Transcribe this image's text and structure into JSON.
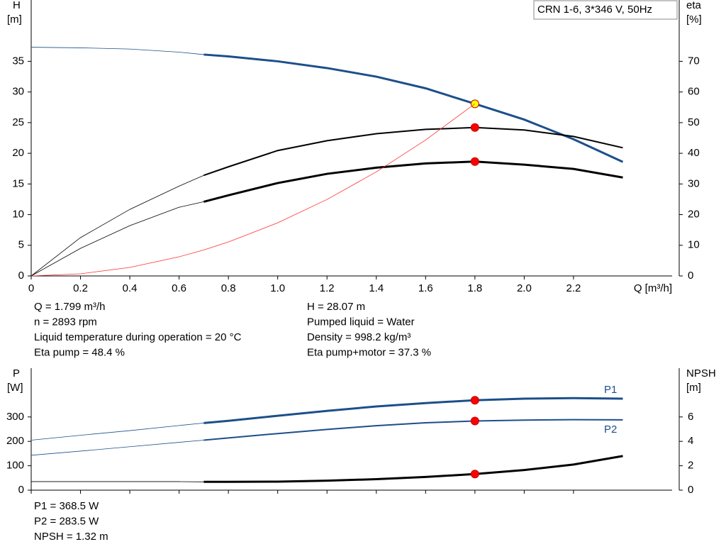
{
  "chart_data": [
    {
      "type": "line",
      "title": "CRN 1-6, 3*346 V, 50Hz",
      "ylabel": [
        "H",
        "[m]"
      ],
      "y2label": [
        "eta",
        "[%]"
      ],
      "xlabel": "Q [m³/h]",
      "x": [
        0,
        0.2,
        0.4,
        0.6,
        0.7,
        0.8,
        1.0,
        1.2,
        1.4,
        1.6,
        1.8,
        2.0,
        2.2,
        2.4
      ],
      "xlim": [
        0,
        2.6
      ],
      "xticks": [
        0,
        0.2,
        0.4,
        0.6,
        0.8,
        {
          "value": 1,
          "label": "1.0"
        },
        1.2,
        1.4,
        1.6,
        1.8,
        {
          "value": 2,
          "label": "2.0"
        },
        2.2
      ],
      "ylim": [
        0,
        45
      ],
      "yticks": [
        0,
        5,
        10,
        15,
        20,
        25,
        30,
        35
      ],
      "y2lim": [
        0,
        90
      ],
      "y2ticks": [
        0,
        10,
        20,
        30,
        40,
        50,
        60,
        70
      ],
      "bold_from": 0.7,
      "marker_x": 1.8,
      "series": [
        {
          "color": "#1c4f8a",
          "width": 3,
          "marker_color": "#ffff00",
          "values": [
            37.3,
            37.2,
            37.0,
            36.5,
            36.1,
            35.8,
            35.0,
            33.9,
            32.5,
            30.6,
            28.07,
            25.5,
            22.3,
            18.6
          ]
        },
        {
          "color": "#000000",
          "width": 2,
          "axis": "y2",
          "marker_color": "#ff0000",
          "values": [
            0,
            12.5,
            21.7,
            29.3,
            32.8,
            35.6,
            40.9,
            44.1,
            46.4,
            47.8,
            48.4,
            47.6,
            45.5,
            41.8
          ]
        },
        {
          "color": "#000000",
          "width": 3,
          "axis": "y2",
          "marker_color": "#ff0000",
          "values": [
            0,
            9,
            16.4,
            22.4,
            24.2,
            26.3,
            30.3,
            33.3,
            35.3,
            36.7,
            37.3,
            36.3,
            34.9,
            32.1
          ]
        },
        {
          "color": "#ff3030",
          "width": 0.8,
          "values": [
            0,
            0.35,
            1.39,
            3.12,
            4.24,
            5.54,
            8.66,
            12.47,
            16.97,
            22.17,
            28.07,
            null,
            null,
            null
          ]
        }
      ],
      "annotations": [
        [
          "Q = 1.799 m³/h",
          "n = 2893 rpm",
          "Liquid temperature during operation = 20 °C",
          "Eta pump = 48.4 %"
        ],
        [
          "H = 28.07 m",
          "Pumped liquid = Water",
          "Density = 998.2 kg/m³",
          "Eta pump+motor = 37.3 %"
        ]
      ]
    },
    {
      "type": "line",
      "ylabel": [
        "P",
        "[W]"
      ],
      "y2label": [
        "NPSH",
        "[m]"
      ],
      "x": [
        0,
        0.2,
        0.4,
        0.6,
        0.7,
        0.8,
        1.0,
        1.2,
        1.4,
        1.6,
        1.8,
        2.0,
        2.2,
        2.4
      ],
      "xlim": [
        0,
        2.6
      ],
      "xticks": [
        0,
        0.2,
        0.4,
        0.6,
        0.8,
        1,
        1.2,
        1.4,
        1.6,
        1.8,
        2,
        2.2
      ],
      "ylim": [
        0,
        500
      ],
      "yticks": [
        0,
        100,
        200,
        300
      ],
      "y2lim": [
        0,
        10
      ],
      "y2ticks": [
        0,
        2,
        4,
        6
      ],
      "bold_from": 0.7,
      "marker_x": 1.8,
      "series": [
        {
          "name": "P1",
          "color": "#1c4f8a",
          "width": 3,
          "marker_color": "#ff0000",
          "values": [
            205,
            225,
            244,
            265,
            275,
            284,
            305,
            325,
            343,
            357,
            368.5,
            375,
            377,
            375
          ]
        },
        {
          "name": "P2",
          "color": "#1c4f8a",
          "width": 2,
          "marker_color": "#ff0000",
          "values": [
            143,
            160,
            178,
            196,
            205,
            214,
            232,
            249,
            264,
            276,
            283.5,
            287,
            289,
            288
          ]
        },
        {
          "color": "#000000",
          "width": 3,
          "axis": "y2",
          "marker_color": "#ff0000",
          "values": [
            0.7,
            0.7,
            0.7,
            0.7,
            0.68,
            0.68,
            0.7,
            0.78,
            0.9,
            1.08,
            1.32,
            1.65,
            2.1,
            2.8
          ]
        }
      ],
      "annotations": [
        [
          "P1 = 368.5 W",
          "P2 = 283.5 W",
          "NPSH = 1.32 m"
        ]
      ]
    }
  ]
}
